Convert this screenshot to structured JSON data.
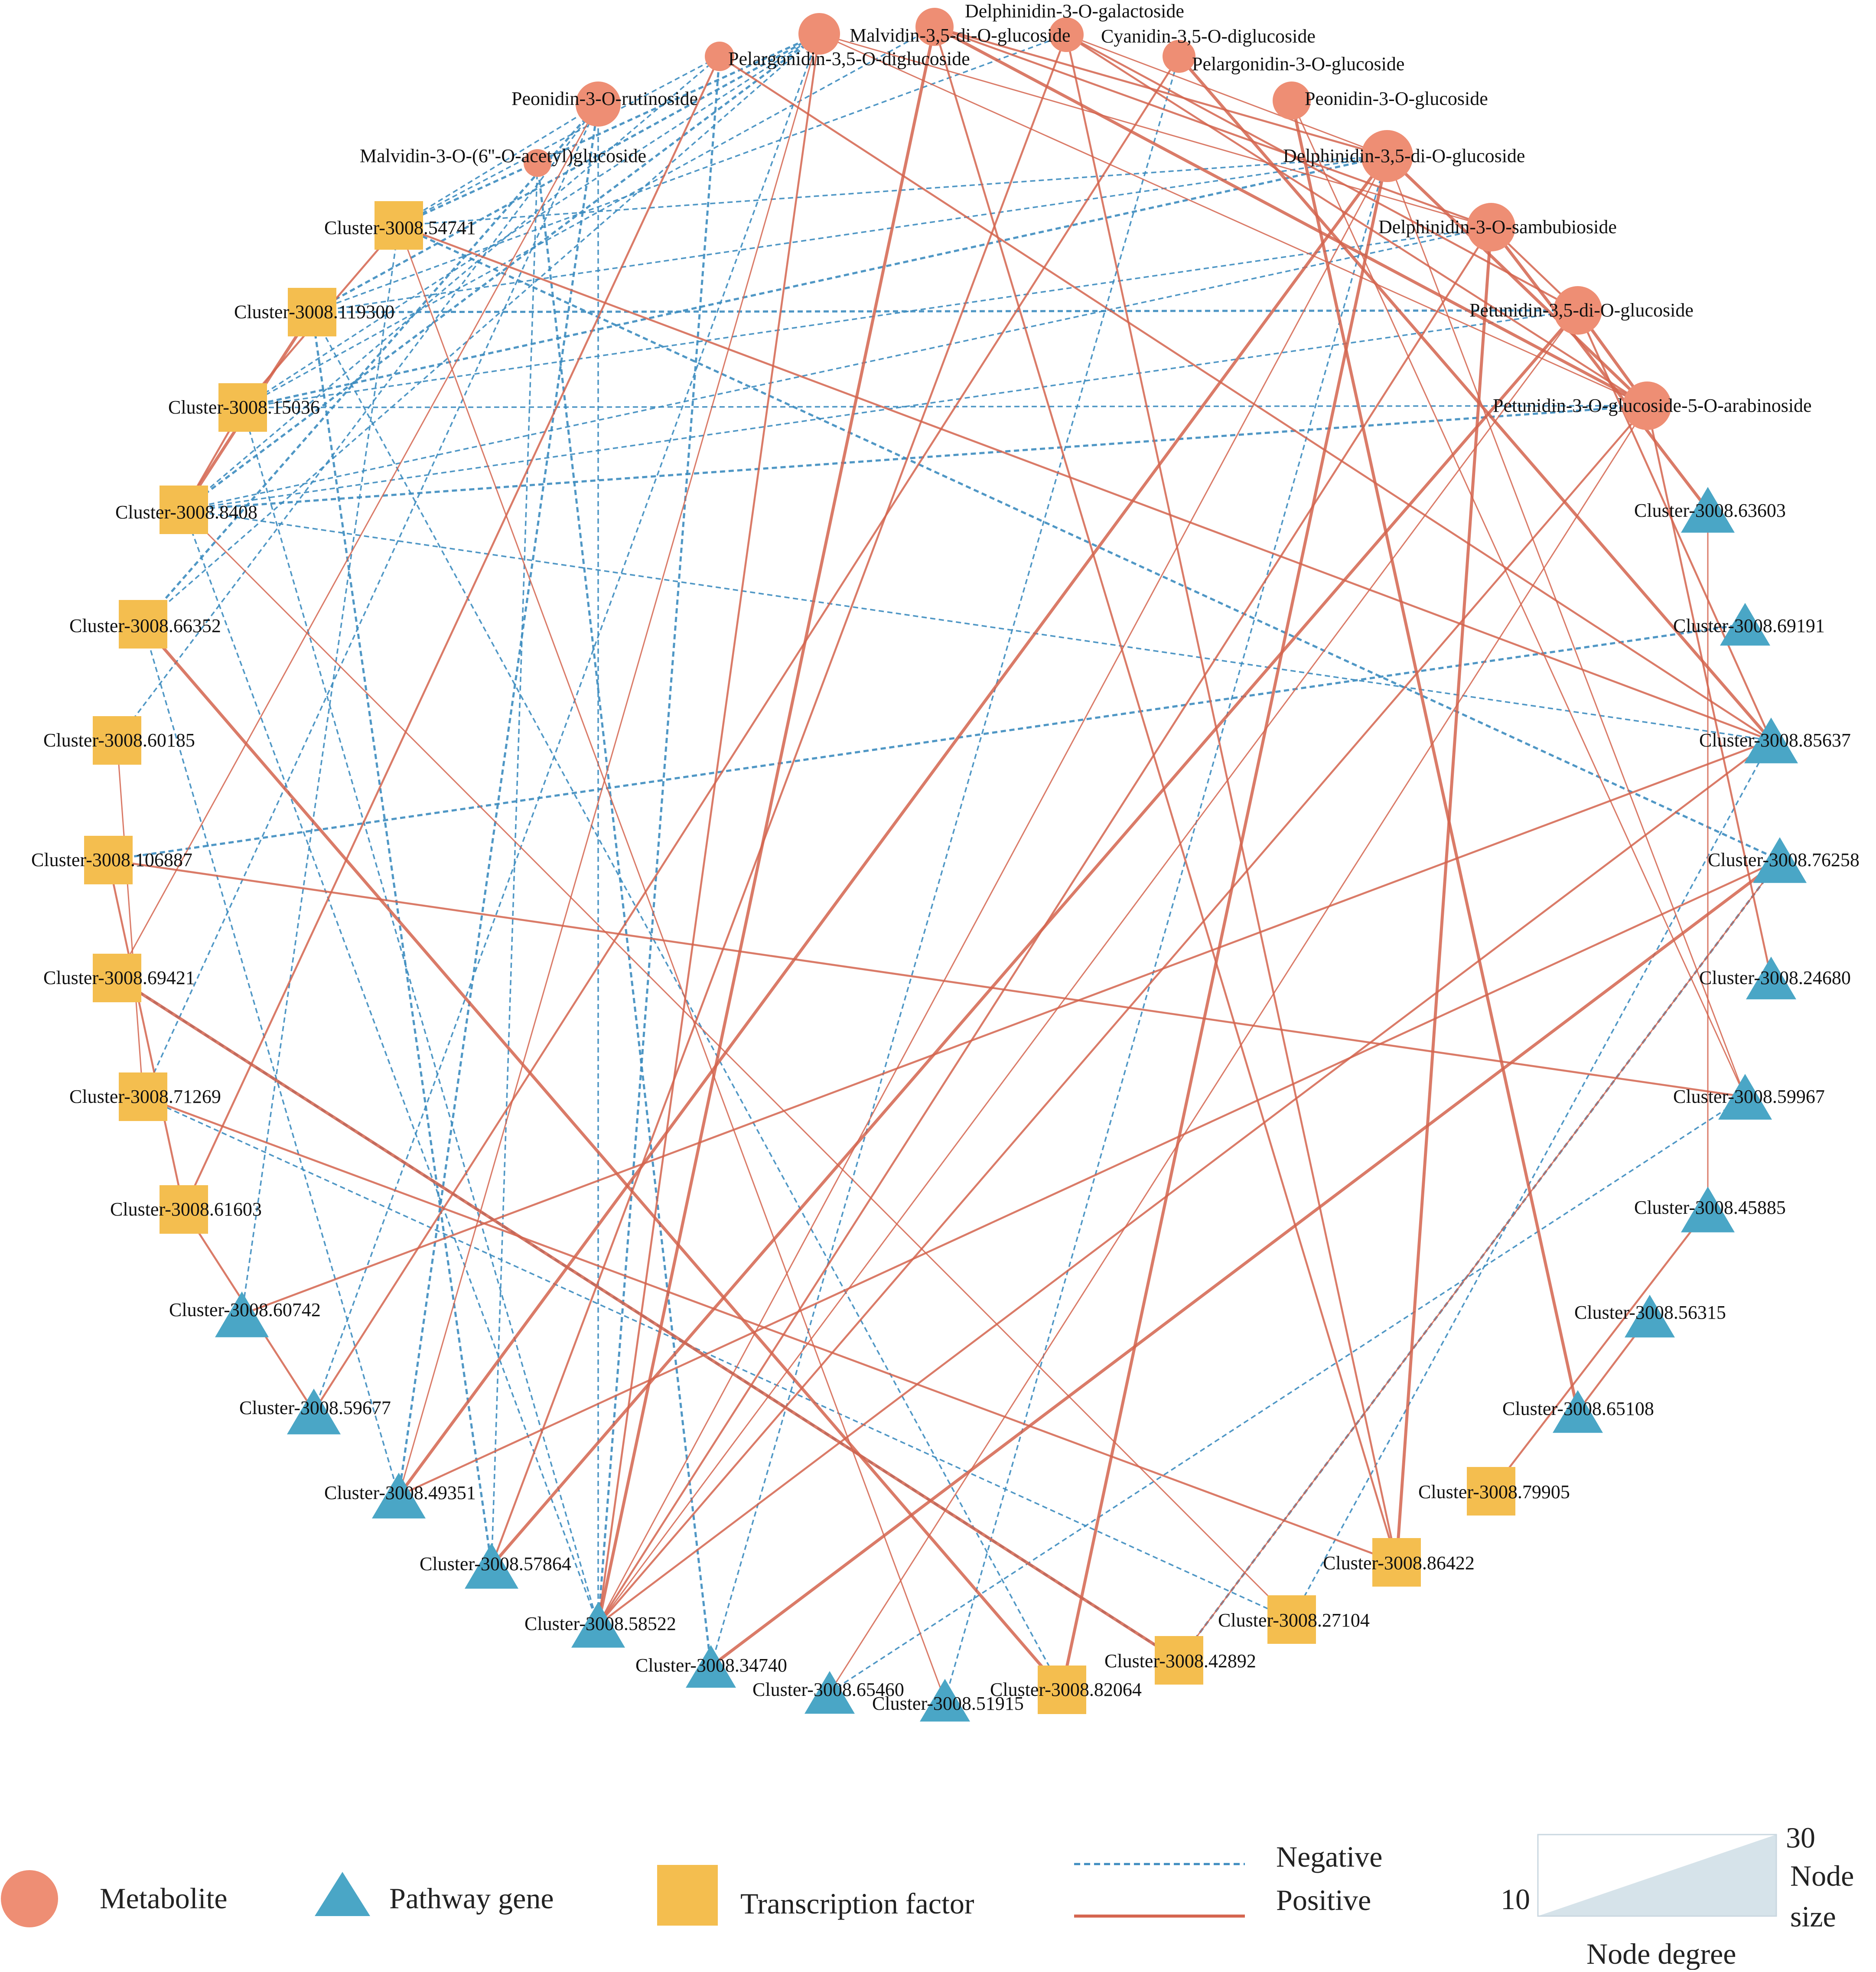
{
  "colors": {
    "metabolite": "#EE8E74",
    "pathway_gene": "#4AA6C6",
    "transcription_factor": "#F4BE4F",
    "negative": "#3D8CBF",
    "positive": "#D4644E",
    "degree_ramp": "#D6E3EA"
  },
  "network": {
    "nodes": [
      {
        "id": "m1",
        "type": "metabolite",
        "label": "Delphinidin-3-O-galactoside"
      },
      {
        "id": "m2",
        "type": "metabolite",
        "label": "Malvidin-3,5-di-O-glucoside"
      },
      {
        "id": "m3",
        "type": "metabolite",
        "label": "Cyanidin-3,5-O-diglucoside"
      },
      {
        "id": "m4",
        "type": "metabolite",
        "label": "Pelargonidin-3,5-O-diglucoside"
      },
      {
        "id": "m5",
        "type": "metabolite",
        "label": "Pelargonidin-3-O-glucoside"
      },
      {
        "id": "m6",
        "type": "metabolite",
        "label": "Peonidin-3-O-rutinoside"
      },
      {
        "id": "m7",
        "type": "metabolite",
        "label": "Peonidin-3-O-glucoside"
      },
      {
        "id": "m8",
        "type": "metabolite",
        "label": "Malvidin-3-O-(6''-O-acetyl)glucoside"
      },
      {
        "id": "m9",
        "type": "metabolite",
        "label": "Delphinidin-3,5-di-O-glucoside"
      },
      {
        "id": "m10",
        "type": "metabolite",
        "label": "Delphinidin-3-O-sambubioside"
      },
      {
        "id": "m11",
        "type": "metabolite",
        "label": "Petunidin-3,5-di-O-glucoside"
      },
      {
        "id": "m12",
        "type": "metabolite",
        "label": "Petunidin-3-O-glucoside-5-O-arabinoside"
      },
      {
        "id": "t1",
        "type": "transcription_factor",
        "label": "Cluster-3008.54741"
      },
      {
        "id": "t2",
        "type": "transcription_factor",
        "label": "Cluster-3008.119300"
      },
      {
        "id": "t3",
        "type": "transcription_factor",
        "label": "Cluster-3008.15036"
      },
      {
        "id": "t4",
        "type": "transcription_factor",
        "label": "Cluster-3008.8408"
      },
      {
        "id": "t5",
        "type": "transcription_factor",
        "label": "Cluster-3008.66352"
      },
      {
        "id": "t6",
        "type": "transcription_factor",
        "label": "Cluster-3008.60185"
      },
      {
        "id": "t7",
        "type": "transcription_factor",
        "label": "Cluster-3008.106887"
      },
      {
        "id": "t8",
        "type": "transcription_factor",
        "label": "Cluster-3008.69421"
      },
      {
        "id": "t9",
        "type": "transcription_factor",
        "label": "Cluster-3008.71269"
      },
      {
        "id": "t10",
        "type": "transcription_factor",
        "label": "Cluster-3008.61603"
      },
      {
        "id": "g1",
        "type": "pathway_gene",
        "label": "Cluster-3008.60742"
      },
      {
        "id": "g2",
        "type": "pathway_gene",
        "label": "Cluster-3008.59677"
      },
      {
        "id": "g3",
        "type": "pathway_gene",
        "label": "Cluster-3008.49351"
      },
      {
        "id": "g4",
        "type": "pathway_gene",
        "label": "Cluster-3008.57864"
      },
      {
        "id": "g5",
        "type": "pathway_gene",
        "label": "Cluster-3008.58522"
      },
      {
        "id": "g6",
        "type": "pathway_gene",
        "label": "Cluster-3008.34740"
      },
      {
        "id": "g7",
        "type": "pathway_gene",
        "label": "Cluster-3008.65460"
      },
      {
        "id": "g8",
        "type": "pathway_gene",
        "label": "Cluster-3008.51915"
      },
      {
        "id": "t11",
        "type": "transcription_factor",
        "label": "Cluster-3008.82064"
      },
      {
        "id": "t12",
        "type": "transcription_factor",
        "label": "Cluster-3008.42892"
      },
      {
        "id": "t13",
        "type": "transcription_factor",
        "label": "Cluster-3008.27104"
      },
      {
        "id": "t14",
        "type": "transcription_factor",
        "label": "Cluster-3008.86422"
      },
      {
        "id": "t15",
        "type": "transcription_factor",
        "label": "Cluster-3008.79905"
      },
      {
        "id": "g9",
        "type": "pathway_gene",
        "label": "Cluster-3008.65108"
      },
      {
        "id": "g10",
        "type": "pathway_gene",
        "label": "Cluster-3008.56315"
      },
      {
        "id": "g11",
        "type": "pathway_gene",
        "label": "Cluster-3008.45885"
      },
      {
        "id": "g12",
        "type": "pathway_gene",
        "label": "Cluster-3008.59967"
      },
      {
        "id": "g13",
        "type": "pathway_gene",
        "label": "Cluster-3008.24680"
      },
      {
        "id": "g14",
        "type": "pathway_gene",
        "label": "Cluster-3008.76258"
      },
      {
        "id": "g15",
        "type": "pathway_gene",
        "label": "Cluster-3008.85637"
      },
      {
        "id": "g16",
        "type": "pathway_gene",
        "label": "Cluster-3008.69191"
      },
      {
        "id": "g17",
        "type": "pathway_gene",
        "label": "Cluster-3008.63603"
      }
    ],
    "edges": [
      {
        "source": "t2",
        "target": "m2",
        "sign": "negative"
      },
      {
        "source": "t2",
        "target": "m3",
        "sign": "negative"
      },
      {
        "source": "t2",
        "target": "m9",
        "sign": "negative"
      },
      {
        "source": "t2",
        "target": "m11",
        "sign": "negative"
      },
      {
        "source": "t3",
        "target": "m2",
        "sign": "negative"
      },
      {
        "source": "t3",
        "target": "m1",
        "sign": "negative"
      },
      {
        "source": "t3",
        "target": "m9",
        "sign": "negative"
      },
      {
        "source": "t3",
        "target": "m12",
        "sign": "negative"
      },
      {
        "source": "t3",
        "target": "m10",
        "sign": "negative"
      },
      {
        "source": "t4",
        "target": "m2",
        "sign": "negative"
      },
      {
        "source": "t4",
        "target": "m4",
        "sign": "negative"
      },
      {
        "source": "t4",
        "target": "m11",
        "sign": "negative"
      },
      {
        "source": "t4",
        "target": "m12",
        "sign": "negative"
      },
      {
        "source": "t4",
        "target": "m10",
        "sign": "negative"
      },
      {
        "source": "t4",
        "target": "g15",
        "sign": "negative"
      },
      {
        "source": "t1",
        "target": "m2",
        "sign": "negative"
      },
      {
        "source": "t1",
        "target": "m4",
        "sign": "negative"
      },
      {
        "source": "t1",
        "target": "m9",
        "sign": "negative"
      },
      {
        "source": "t5",
        "target": "m6",
        "sign": "negative"
      },
      {
        "source": "t5",
        "target": "m2",
        "sign": "negative"
      },
      {
        "source": "t6",
        "target": "m6",
        "sign": "negative"
      },
      {
        "source": "t7",
        "target": "g16",
        "sign": "negative"
      },
      {
        "source": "t9",
        "target": "m6",
        "sign": "negative"
      },
      {
        "source": "g5",
        "target": "m6",
        "sign": "negative"
      },
      {
        "source": "g5",
        "target": "m4",
        "sign": "negative"
      },
      {
        "source": "g5",
        "target": "t4",
        "sign": "negative"
      },
      {
        "source": "g5",
        "target": "t3",
        "sign": "negative"
      },
      {
        "source": "g4",
        "target": "t2",
        "sign": "negative"
      },
      {
        "source": "g4",
        "target": "m8",
        "sign": "negative"
      },
      {
        "source": "g3",
        "target": "t5",
        "sign": "negative"
      },
      {
        "source": "g3",
        "target": "m6",
        "sign": "negative"
      },
      {
        "source": "g2",
        "target": "m2",
        "sign": "negative"
      },
      {
        "source": "g1",
        "target": "t1",
        "sign": "negative"
      },
      {
        "source": "g6",
        "target": "m8",
        "sign": "negative"
      },
      {
        "source": "g6",
        "target": "m5",
        "sign": "negative"
      },
      {
        "source": "t13",
        "target": "t9",
        "sign": "negative"
      },
      {
        "source": "t12",
        "target": "t8",
        "sign": "negative"
      },
      {
        "source": "g7",
        "target": "g12",
        "sign": "negative"
      },
      {
        "source": "g8",
        "target": "m9",
        "sign": "negative"
      },
      {
        "source": "t12",
        "target": "g14",
        "sign": "negative"
      },
      {
        "source": "t11",
        "target": "t2",
        "sign": "negative"
      },
      {
        "source": "t13",
        "target": "g15",
        "sign": "negative"
      },
      {
        "source": "t1",
        "target": "g14",
        "sign": "negative"
      },
      {
        "source": "m6",
        "target": "t1",
        "sign": "negative"
      },
      {
        "source": "m9",
        "target": "m12",
        "sign": "positive"
      },
      {
        "source": "m9",
        "target": "m3",
        "sign": "positive"
      },
      {
        "source": "m10",
        "target": "m1",
        "sign": "positive"
      },
      {
        "source": "m10",
        "target": "m11",
        "sign": "positive"
      },
      {
        "source": "m11",
        "target": "m12",
        "sign": "positive"
      },
      {
        "source": "m2",
        "target": "m12",
        "sign": "positive"
      },
      {
        "source": "m3",
        "target": "m11",
        "sign": "positive"
      },
      {
        "source": "m1",
        "target": "m9",
        "sign": "positive"
      },
      {
        "source": "m1",
        "target": "m12",
        "sign": "positive"
      },
      {
        "source": "m2",
        "target": "m10",
        "sign": "positive"
      },
      {
        "source": "m4",
        "target": "g15",
        "sign": "positive"
      },
      {
        "source": "m3",
        "target": "m12",
        "sign": "positive"
      },
      {
        "source": "m5",
        "target": "g15",
        "sign": "positive"
      },
      {
        "source": "m7",
        "target": "g12",
        "sign": "positive"
      },
      {
        "source": "t3",
        "target": "t4",
        "sign": "positive"
      },
      {
        "source": "t3",
        "target": "t1",
        "sign": "positive"
      },
      {
        "source": "t2",
        "target": "t4",
        "sign": "positive"
      },
      {
        "source": "t6",
        "target": "t9",
        "sign": "positive"
      },
      {
        "source": "t10",
        "target": "g2",
        "sign": "positive"
      },
      {
        "source": "t10",
        "target": "t7",
        "sign": "positive"
      },
      {
        "source": "t8",
        "target": "t12",
        "sign": "positive"
      },
      {
        "source": "t8",
        "target": "m6",
        "sign": "positive"
      },
      {
        "source": "t9",
        "target": "t14",
        "sign": "positive"
      },
      {
        "source": "t7",
        "target": "g12",
        "sign": "positive"
      },
      {
        "source": "t5",
        "target": "t11",
        "sign": "positive"
      },
      {
        "source": "t1",
        "target": "g8",
        "sign": "positive"
      },
      {
        "source": "t1",
        "target": "g15",
        "sign": "positive"
      },
      {
        "source": "g1",
        "target": "g15",
        "sign": "positive"
      },
      {
        "source": "g3",
        "target": "m9",
        "sign": "positive"
      },
      {
        "source": "g3",
        "target": "m2",
        "sign": "positive"
      },
      {
        "source": "g3",
        "target": "g14",
        "sign": "positive"
      },
      {
        "source": "g4",
        "target": "m3",
        "sign": "positive"
      },
      {
        "source": "g4",
        "target": "m11",
        "sign": "positive"
      },
      {
        "source": "g5",
        "target": "m9",
        "sign": "positive"
      },
      {
        "source": "g5",
        "target": "m10",
        "sign": "positive"
      },
      {
        "source": "g5",
        "target": "m2",
        "sign": "positive"
      },
      {
        "source": "g5",
        "target": "m1",
        "sign": "positive"
      },
      {
        "source": "g5",
        "target": "m11",
        "sign": "positive"
      },
      {
        "source": "g5",
        "target": "g15",
        "sign": "positive"
      },
      {
        "source": "g5",
        "target": "m12",
        "sign": "positive"
      },
      {
        "source": "g6",
        "target": "g14",
        "sign": "positive"
      },
      {
        "source": "g7",
        "target": "m12",
        "sign": "positive"
      },
      {
        "source": "t14",
        "target": "m1",
        "sign": "positive"
      },
      {
        "source": "t14",
        "target": "m3",
        "sign": "positive"
      },
      {
        "source": "t14",
        "target": "m10",
        "sign": "positive"
      },
      {
        "source": "t13",
        "target": "t4",
        "sign": "positive"
      },
      {
        "source": "t15",
        "target": "g11",
        "sign": "positive"
      },
      {
        "source": "g9",
        "target": "g10",
        "sign": "positive"
      },
      {
        "source": "g9",
        "target": "m7",
        "sign": "positive"
      },
      {
        "source": "g11",
        "target": "g17",
        "sign": "positive"
      },
      {
        "source": "g13",
        "target": "m12",
        "sign": "positive"
      },
      {
        "source": "g15",
        "target": "m11",
        "sign": "positive"
      },
      {
        "source": "g17",
        "target": "m10",
        "sign": "positive"
      },
      {
        "source": "g12",
        "target": "m9",
        "sign": "positive"
      },
      {
        "source": "t10",
        "target": "m4",
        "sign": "positive"
      },
      {
        "source": "g2",
        "target": "m5",
        "sign": "positive"
      },
      {
        "source": "t11",
        "target": "m9",
        "sign": "positive"
      },
      {
        "source": "t12",
        "target": "g14",
        "sign": "positive"
      }
    ]
  },
  "legend": {
    "metabolite": "Metabolite",
    "pathway_gene": "Pathway gene",
    "transcription_factor": "Transcription factor",
    "negative": "Negative",
    "positive": "Positive",
    "degree_min": "10",
    "degree_max": "30",
    "node_size_line1": "Node",
    "node_size_line2": "size",
    "node_degree": "Node degree"
  }
}
